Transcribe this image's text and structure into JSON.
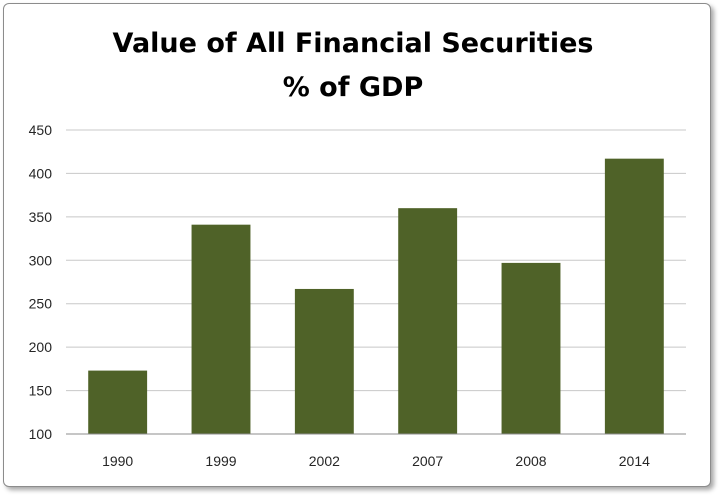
{
  "chart_data": {
    "type": "bar",
    "title": [
      "Value of All Financial Securities",
      "% of GDP"
    ],
    "xlabel": "",
    "ylabel": "",
    "categories": [
      "1990",
      "1999",
      "2002",
      "2007",
      "2008",
      "2014"
    ],
    "values": [
      173,
      341,
      267,
      360,
      297,
      417
    ],
    "ylim": [
      100,
      450
    ],
    "yticks": [
      "100",
      "150",
      "200",
      "250",
      "300",
      "350",
      "400",
      "450"
    ],
    "grid": true,
    "legend": "none",
    "bar_color": "#4f6228"
  }
}
